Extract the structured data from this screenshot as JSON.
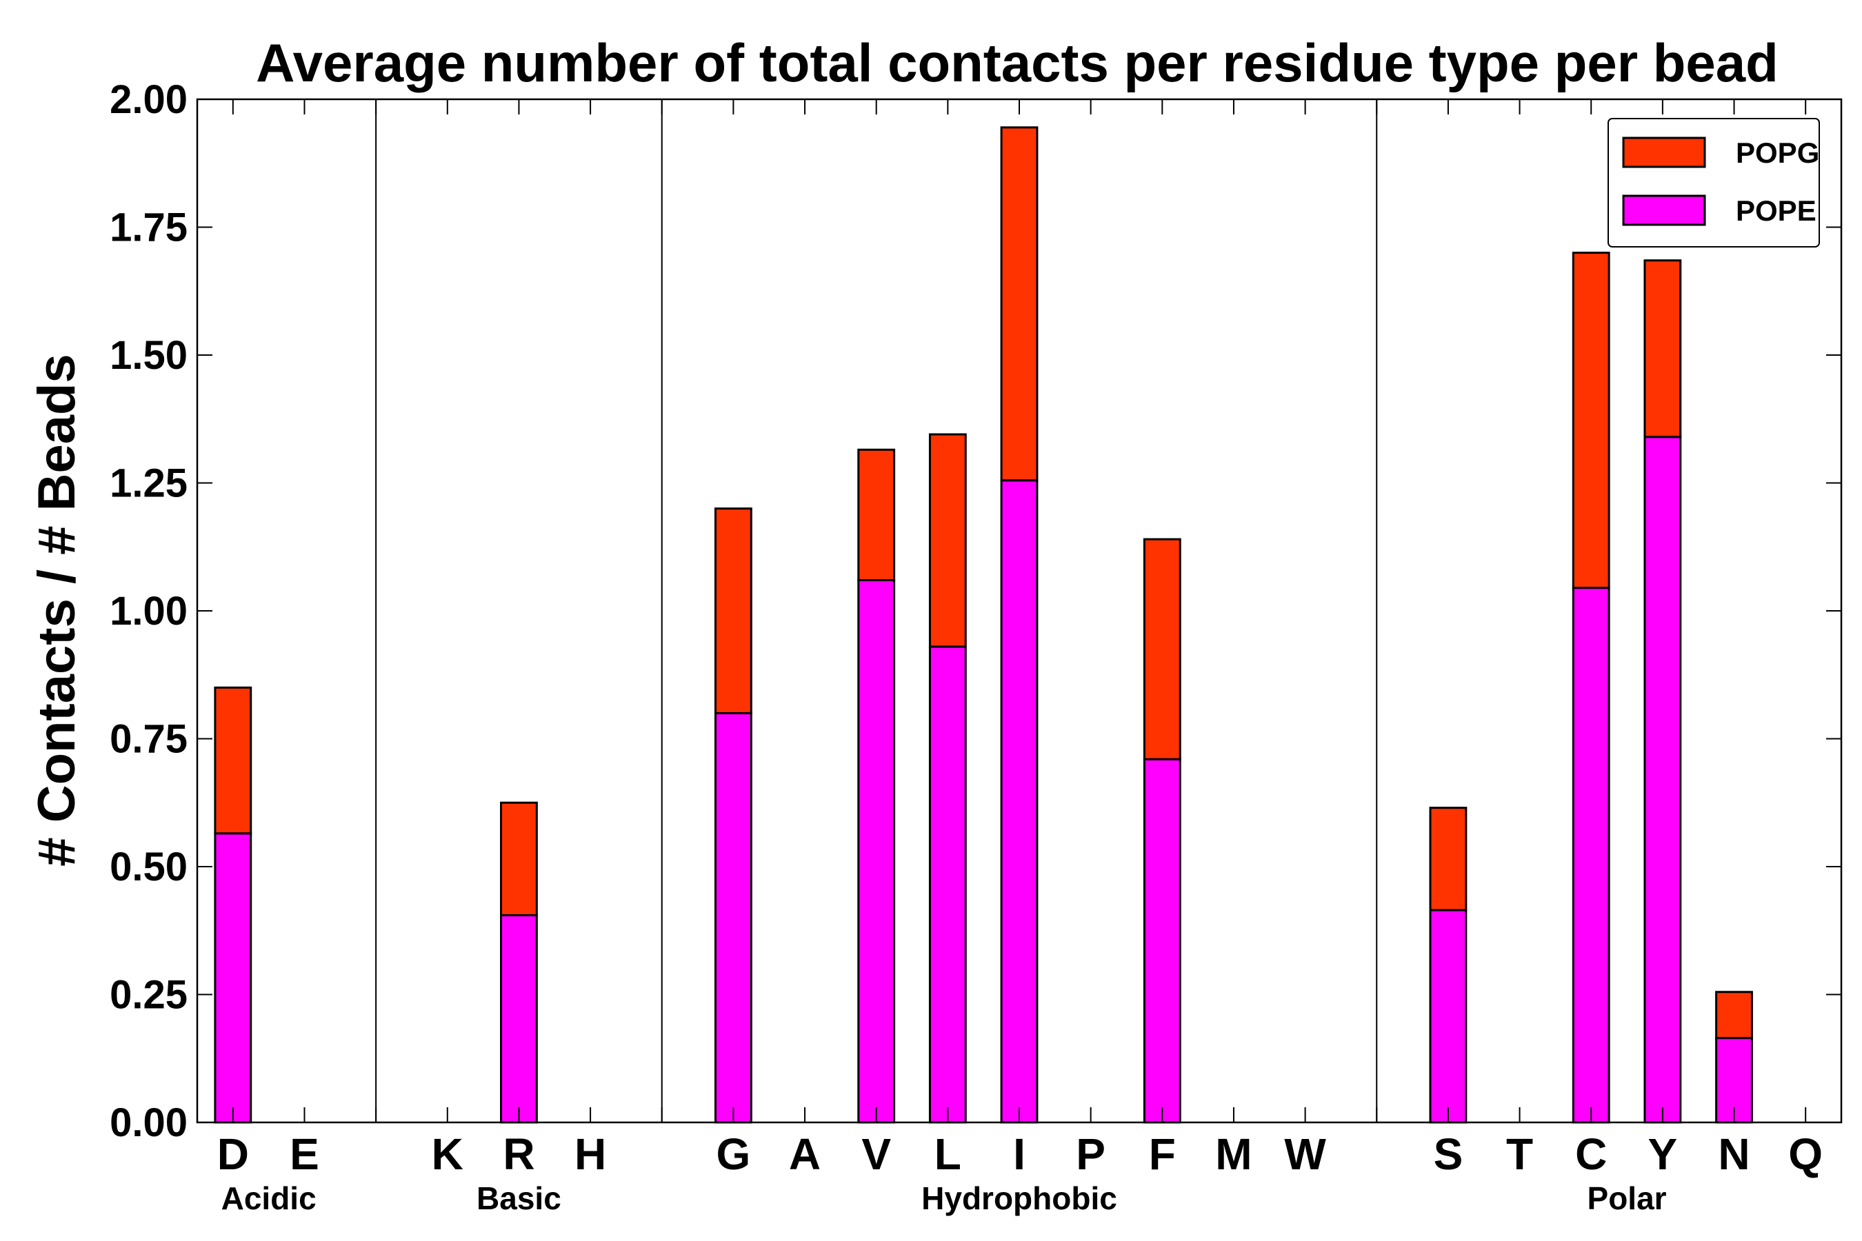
{
  "chart_data": {
    "type": "bar",
    "stacked": true,
    "title": "Average number of total contacts per residue type per bead",
    "xlabel": "",
    "ylabel": "# Contacts / # Beads",
    "ylim": [
      0,
      2.0
    ],
    "yticks": [
      "0.00",
      "0.25",
      "0.50",
      "0.75",
      "1.00",
      "1.25",
      "1.50",
      "1.75",
      "2.00"
    ],
    "grid": false,
    "legend_position": "top-right",
    "categories": [
      "D",
      "E",
      "",
      "K",
      "R",
      "H",
      "",
      "G",
      "A",
      "V",
      "L",
      "I",
      "P",
      "F",
      "M",
      "W",
      "",
      "S",
      "T",
      "C",
      "Y",
      "N",
      "Q"
    ],
    "series": [
      {
        "name": "POPE",
        "color": "#ff00ff",
        "values": [
          0.565,
          0,
          0,
          0,
          0.405,
          0,
          0,
          0.8,
          0,
          1.06,
          0.93,
          1.255,
          0,
          0.71,
          0,
          0,
          0,
          0.415,
          0,
          1.045,
          1.34,
          0.165,
          0
        ]
      },
      {
        "name": "POPG",
        "color": "#ff3300",
        "values": [
          0.285,
          0,
          0,
          0,
          0.22,
          0,
          0,
          0.4,
          0,
          0.255,
          0.415,
          0.69,
          0,
          0.43,
          0,
          0,
          0,
          0.2,
          0,
          0.655,
          0.345,
          0.09,
          0
        ]
      }
    ],
    "groups": [
      {
        "label": "Acidic",
        "start": 0,
        "end": 1
      },
      {
        "label": "Basic",
        "start": 3,
        "end": 5
      },
      {
        "label": "Hydrophobic",
        "start": 7,
        "end": 15
      },
      {
        "label": "Polar",
        "start": 17,
        "end": 22
      }
    ],
    "separators_after": [
      1,
      5,
      15
    ]
  }
}
